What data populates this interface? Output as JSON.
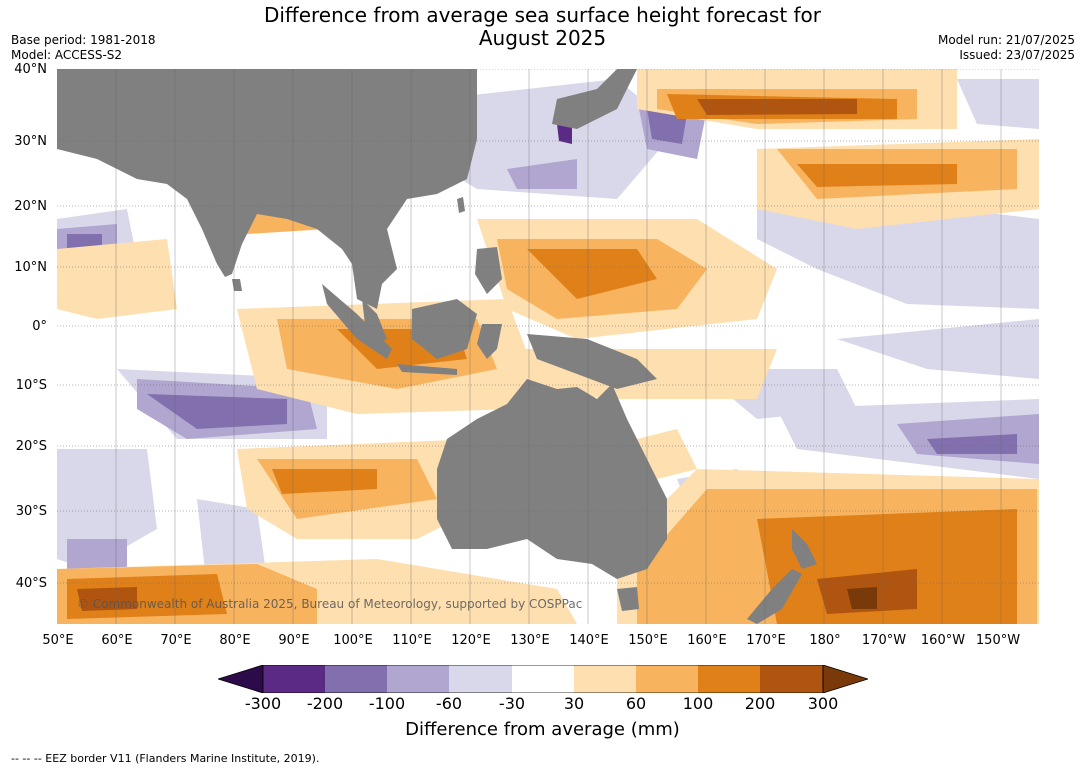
{
  "title_line1": "Difference from average sea surface height forecast for",
  "title_line2": "August 2025",
  "base_period": "Base period: 1981-2018",
  "model": "Model: ACCESS-S2",
  "model_run": "Model run: 21/07/2025",
  "issued": "Issued: 23/07/2025",
  "map": {
    "region": "Indian Ocean, Maritime Continent, Australia and Western Pacific",
    "lat_labels": [
      "40°N",
      "30°N",
      "20°N",
      "10°N",
      "0°",
      "10°S",
      "20°S",
      "30°S",
      "40°S"
    ],
    "lon_labels": [
      "50°E",
      "60°E",
      "70°E",
      "80°E",
      "90°E",
      "100°E",
      "110°E",
      "120°E",
      "130°E",
      "140°E",
      "150°E",
      "160°E",
      "170°E",
      "180°",
      "170°W",
      "160°W",
      "150°W"
    ],
    "land_color": "#808080",
    "copyright": "© Commonwealth of Australia 2025, Bureau of Meteorology, supported by COSPPac"
  },
  "colorbar": {
    "ticks": [
      "-300",
      "-200",
      "-100",
      "-60",
      "-30",
      "30",
      "60",
      "100",
      "200",
      "300"
    ],
    "colors": [
      "#2d0a4a",
      "#5a2a85",
      "#8170ad",
      "#b0a6cf",
      "#d8d8ea",
      "#ffffff",
      "#fddfb0",
      "#f8b35e",
      "#e08018",
      "#b05510",
      "#7a3908"
    ],
    "label": "Difference from average (mm)"
  },
  "eez_note": "--  --  -- EEZ border V11 (Flanders Marine Institute, 2019)."
}
